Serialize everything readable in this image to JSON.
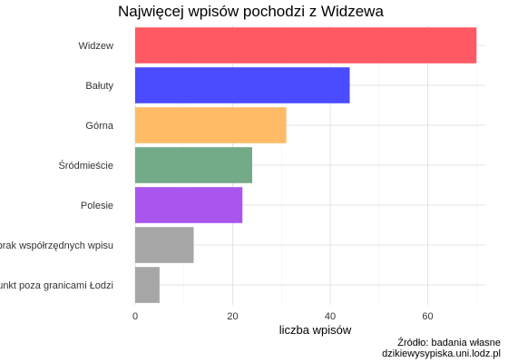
{
  "chart_data": {
    "type": "bar",
    "orientation": "horizontal",
    "title": "Najwięcej wpisów pochodzi z Widzewa",
    "xlabel": "liczba wpisów",
    "ylabel": "",
    "categories": [
      "Widzew",
      "Bałuty",
      "Górna",
      "Śródmieście",
      "Polesie",
      "brak współrzędnych wpisu",
      "punkt poza granicami Łodzi"
    ],
    "values": [
      70,
      44,
      31,
      24,
      22,
      12,
      5
    ],
    "colors": [
      "#ff5a63",
      "#4b4bff",
      "#ffbb66",
      "#73aa88",
      "#aa55ee",
      "#a6a6a6",
      "#a6a6a6"
    ],
    "xlim": [
      0,
      72
    ],
    "xticks": [
      "0",
      "20",
      "40",
      "60"
    ],
    "xtick_values": [
      0,
      20,
      40,
      60
    ],
    "grid": true
  },
  "source": {
    "line1": "Źródło: badania własne",
    "line2": "dzikiewysypiska.uni.lodz.pl"
  }
}
